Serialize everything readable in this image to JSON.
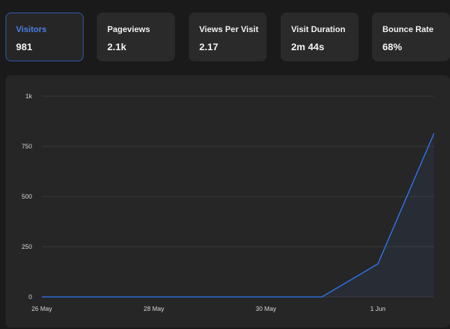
{
  "metrics": [
    {
      "label": "Visitors",
      "value": "981",
      "selected": true
    },
    {
      "label": "Pageviews",
      "value": "2.1k",
      "selected": false
    },
    {
      "label": "Views Per Visit",
      "value": "2.17",
      "selected": false
    },
    {
      "label": "Visit Duration",
      "value": "2m 44s",
      "selected": false
    },
    {
      "label": "Bounce Rate",
      "value": "68%",
      "selected": false
    }
  ],
  "colors": {
    "accent": "#2f6fe0",
    "background": "#1a1a1a",
    "card": "#2a2a2a",
    "panel": "#262626"
  },
  "chart_data": {
    "type": "area",
    "x_tick_labels": [
      "26 May",
      "28 May",
      "30 May",
      "1 Jun"
    ],
    "y_tick_labels": [
      "0",
      "250",
      "500",
      "750",
      "1k"
    ],
    "ylim": [
      0,
      1000
    ],
    "x": [
      "26 May",
      "27 May",
      "28 May",
      "29 May",
      "30 May",
      "31 May",
      "1 Jun",
      "2 Jun"
    ],
    "series": [
      {
        "values": [
          0,
          0,
          0,
          0,
          0,
          0,
          165,
          815
        ]
      }
    ],
    "grid": true
  }
}
